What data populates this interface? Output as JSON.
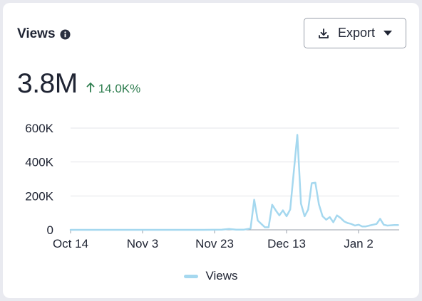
{
  "card": {
    "title": "Views",
    "info_icon": "info-circle-icon",
    "export_label": "Export",
    "export_icon": "download-icon",
    "dropdown_icon": "caret-down-icon"
  },
  "metric": {
    "value": "3.8M",
    "change": "14.0K%",
    "change_icon": "arrow-up-icon",
    "change_color": "#2e7d4f"
  },
  "chart_data": {
    "type": "line",
    "title": "",
    "xlabel": "",
    "ylabel": "",
    "ylim": [
      0,
      600000
    ],
    "y_ticks": [
      {
        "value": 0,
        "label": "0"
      },
      {
        "value": 200000,
        "label": "200K"
      },
      {
        "value": 400000,
        "label": "400K"
      },
      {
        "value": 600000,
        "label": "600K"
      }
    ],
    "x_ticks": [
      {
        "date": "2023-10-14",
        "label": "Oct 14"
      },
      {
        "date": "2023-11-03",
        "label": "Nov 3"
      },
      {
        "date": "2023-11-23",
        "label": "Nov 23"
      },
      {
        "date": "2023-12-13",
        "label": "Dec 13"
      },
      {
        "date": "2024-01-02",
        "label": "Jan 2"
      }
    ],
    "grid": true,
    "legend_position": "bottom",
    "series": [
      {
        "name": "Views",
        "color": "#a5d8ef",
        "points": [
          [
            "2023-10-14",
            0
          ],
          [
            "2023-10-20",
            0
          ],
          [
            "2023-10-30",
            0
          ],
          [
            "2023-11-10",
            0
          ],
          [
            "2023-11-20",
            0
          ],
          [
            "2023-11-25",
            1000
          ],
          [
            "2023-11-27",
            5000
          ],
          [
            "2023-11-29",
            1000
          ],
          [
            "2023-12-01",
            1000
          ],
          [
            "2023-12-03",
            8000
          ],
          [
            "2023-12-04",
            178000
          ],
          [
            "2023-12-05",
            55000
          ],
          [
            "2023-12-06",
            35000
          ],
          [
            "2023-12-07",
            15000
          ],
          [
            "2023-12-08",
            15000
          ],
          [
            "2023-12-09",
            148000
          ],
          [
            "2023-12-10",
            115000
          ],
          [
            "2023-12-11",
            85000
          ],
          [
            "2023-12-12",
            115000
          ],
          [
            "2023-12-13",
            80000
          ],
          [
            "2023-12-14",
            120000
          ],
          [
            "2023-12-16",
            560000
          ],
          [
            "2023-12-17",
            155000
          ],
          [
            "2023-12-18",
            80000
          ],
          [
            "2023-12-19",
            120000
          ],
          [
            "2023-12-20",
            275000
          ],
          [
            "2023-12-21",
            278000
          ],
          [
            "2023-12-22",
            150000
          ],
          [
            "2023-12-23",
            80000
          ],
          [
            "2023-12-24",
            60000
          ],
          [
            "2023-12-25",
            75000
          ],
          [
            "2023-12-26",
            45000
          ],
          [
            "2023-12-27",
            85000
          ],
          [
            "2023-12-28",
            70000
          ],
          [
            "2023-12-29",
            50000
          ],
          [
            "2023-12-30",
            40000
          ],
          [
            "2023-12-31",
            35000
          ],
          [
            "2024-01-01",
            25000
          ],
          [
            "2024-01-02",
            30000
          ],
          [
            "2024-01-03",
            20000
          ],
          [
            "2024-01-04",
            20000
          ],
          [
            "2024-01-05",
            25000
          ],
          [
            "2024-01-06",
            30000
          ],
          [
            "2024-01-07",
            35000
          ],
          [
            "2024-01-08",
            65000
          ],
          [
            "2024-01-09",
            30000
          ],
          [
            "2024-01-10",
            25000
          ],
          [
            "2024-01-12",
            28000
          ],
          [
            "2024-01-13",
            28000
          ]
        ]
      }
    ]
  },
  "legend": {
    "items": [
      {
        "label": "Views",
        "color": "#a5d8ef"
      }
    ]
  }
}
